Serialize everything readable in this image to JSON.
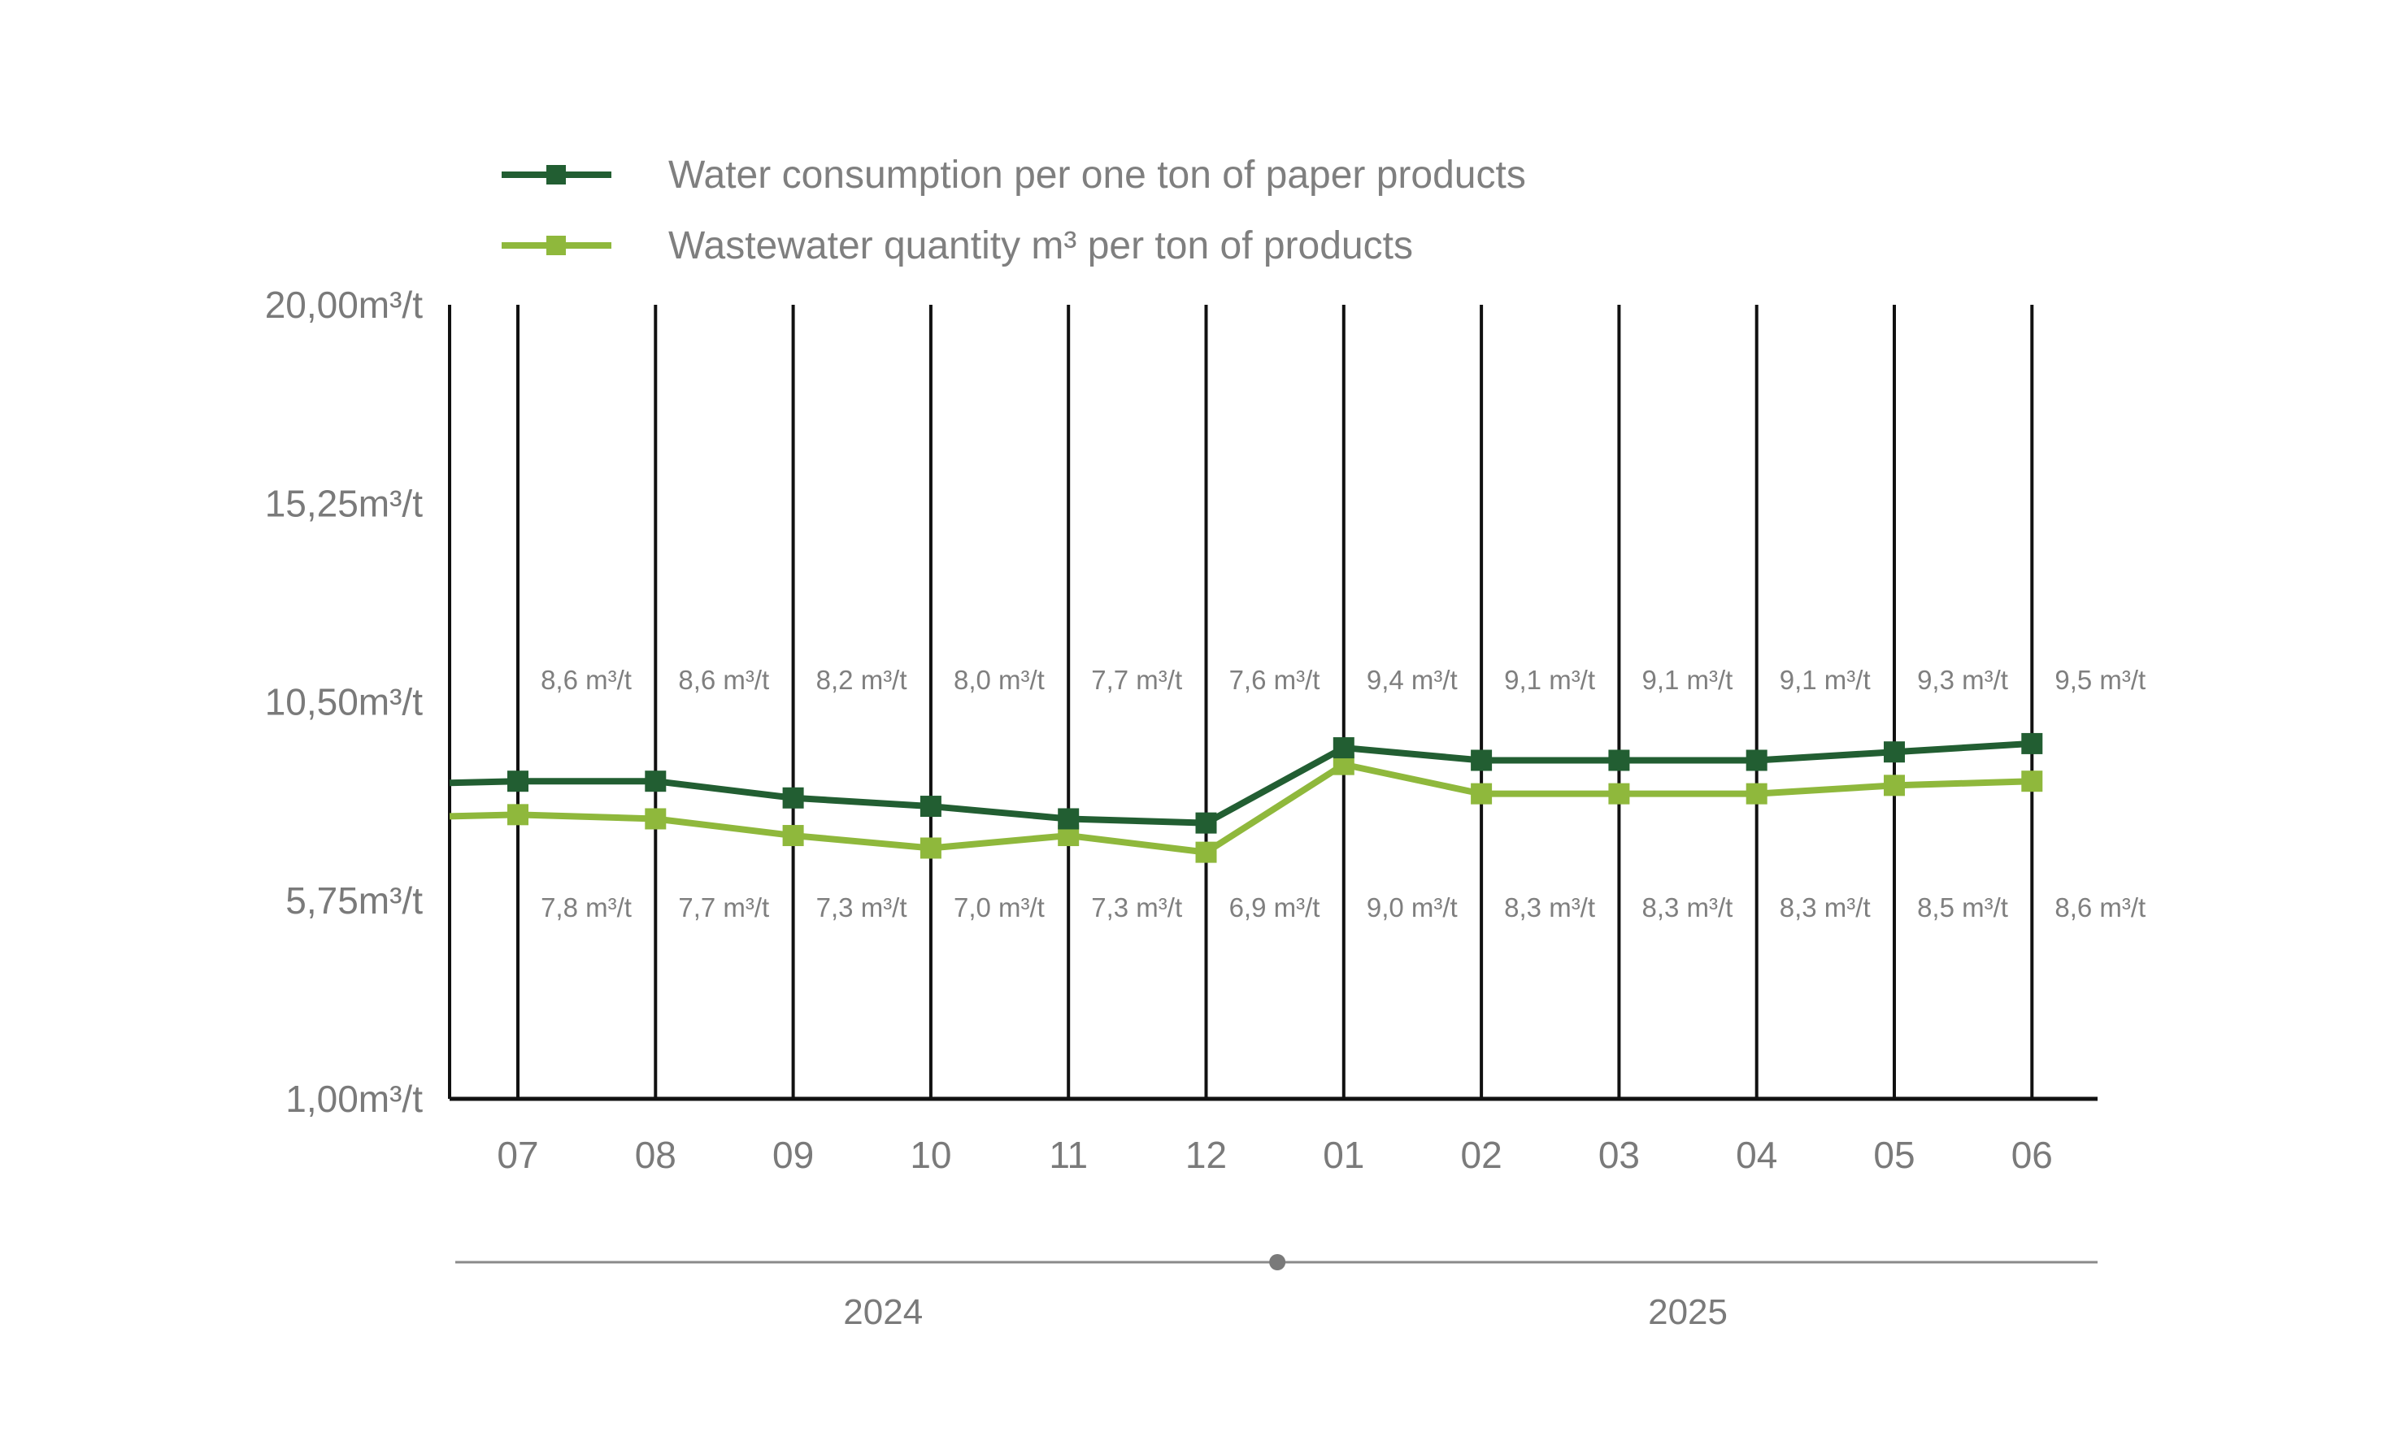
{
  "chart_data": {
    "type": "line",
    "categories": [
      "07",
      "08",
      "09",
      "10",
      "11",
      "12",
      "01",
      "02",
      "03",
      "04",
      "05",
      "06"
    ],
    "series": [
      {
        "name": "Water consumption per one ton of paper products",
        "values": [
          8.6,
          8.6,
          8.2,
          8.0,
          7.7,
          7.6,
          9.4,
          9.1,
          9.1,
          9.1,
          9.3,
          9.5
        ],
        "labels": [
          "8,6 m³/t",
          "8,6 m³/t",
          "8,2 m³/t",
          "8,0 m³/t",
          "7,7 m³/t",
          "7,6 m³/t",
          "9,4 m³/t",
          "9,1 m³/t",
          "9,1 m³/t",
          "9,1 m³/t",
          "9,3 m³/t",
          "9,5 m³/t"
        ],
        "color": "#225e32"
      },
      {
        "name": "Wastewater quantity m³ per ton of products",
        "values": [
          7.8,
          7.7,
          7.3,
          7.0,
          7.3,
          6.9,
          9.0,
          8.3,
          8.3,
          8.3,
          8.5,
          8.6
        ],
        "labels": [
          "7,8 m³/t",
          "7,7 m³/t",
          "7,3 m³/t",
          "7,0 m³/t",
          "7,3 m³/t",
          "6,9 m³/t",
          "9,0 m³/t",
          "8,3 m³/t",
          "8,3 m³/t",
          "8,3 m³/t",
          "8,5 m³/t",
          "8,6 m³/t"
        ],
        "color": "#8fb83c"
      }
    ],
    "y_ticks": [
      {
        "value": 20.0,
        "label": "20,00m³/t"
      },
      {
        "value": 15.25,
        "label": "15,25m³/t"
      },
      {
        "value": 10.5,
        "label": "10,50m³/t"
      },
      {
        "value": 5.75,
        "label": "5,75m³/t"
      },
      {
        "value": 1.0,
        "label": "1,00m³/t"
      }
    ],
    "ylim": [
      1.0,
      20.0
    ],
    "year_groups": [
      {
        "label": "2024",
        "from": 0,
        "to": 5
      },
      {
        "label": "2025",
        "from": 6,
        "to": 11
      }
    ],
    "grid": "vertical",
    "legend_position": "top-left"
  }
}
